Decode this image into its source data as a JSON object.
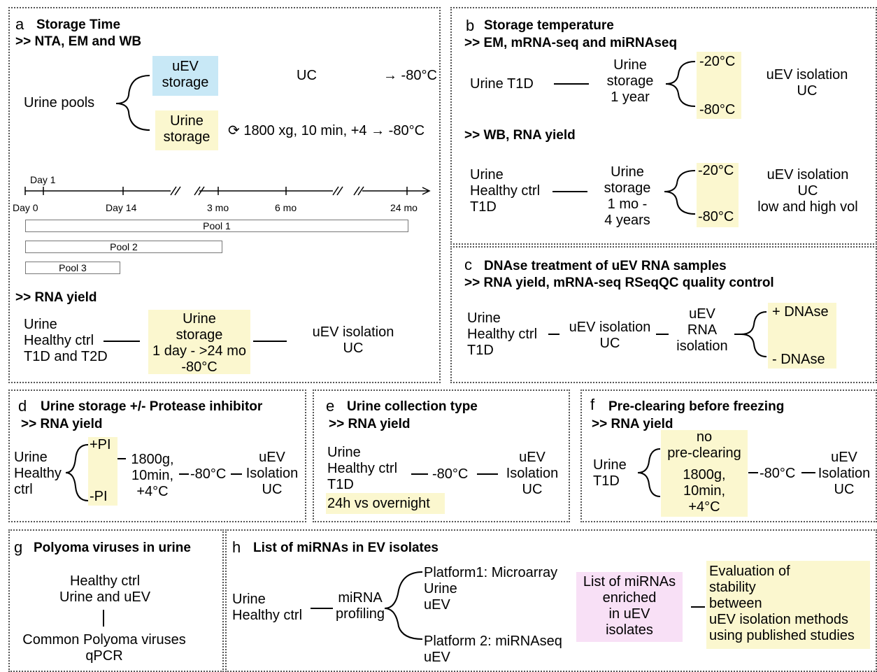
{
  "a": {
    "letter": "a",
    "title": "Storage Time",
    "sub": ">> NTA, EM and WB",
    "source": "Urine pools",
    "uev_storage": "uEV\nstorage",
    "urine_storage": "Urine\nstorage",
    "uc": "UC",
    "to80a": "→ -80°C",
    "clear": "⟳ 1800 xg, 10 min, +4 → -80°C",
    "timeline": {
      "day1": "Day 1",
      "day0": "Day 0",
      "day14": "Day 14",
      "mo3": "3 mo",
      "mo6": "6 mo",
      "mo24": "24 mo"
    },
    "pools": [
      "Pool 1",
      "Pool 2",
      "Pool 3"
    ],
    "rna_head": ">> RNA yield",
    "rna_source": "Urine\nHealthy ctrl\nT1D and T2D",
    "rna_storage": "Urine\nstorage\n1 day - >24 mo\n-80°C",
    "rna_iso": "uEV isolation\nUC"
  },
  "b": {
    "letter": "b",
    "title": "Storage temperature",
    "sub": ">> EM, mRNA-seq and miRNAseq",
    "source1": "Urine T1D",
    "storage1": "Urine\nstorage\n1 year",
    "temp_hi": "-20°C",
    "temp_lo": "-80°C",
    "iso1": "uEV isolation\nUC",
    "sub2": ">> WB, RNA yield",
    "source2": "Urine\nHealthy ctrl\nT1D",
    "storage2": "Urine\nstorage\n1 mo -\n4 years",
    "iso2": "uEV isolation\nUC\nlow and high vol"
  },
  "c": {
    "letter": "c",
    "title": "DNAse treatment of uEV RNA samples",
    "sub": ">> RNA yield, mRNA-seq RSeqQC quality control",
    "source": "Urine\nHealthy ctrl\nT1D",
    "iso": "uEV isolation\nUC",
    "rna": "uEV\nRNA\nisolation",
    "plus": "+ DNAse",
    "minus": "- DNAse"
  },
  "d": {
    "letter": "d",
    "title": "Urine storage +/- Protease inhibitor",
    "sub": ">> RNA yield",
    "source": "Urine\nHealthy\nctrl",
    "plus": "+PI",
    "minus": "-PI",
    "spin": "1800g,\n10min,\n+4°C",
    "temp": "-80°C",
    "iso": "uEV\nIsolation\nUC"
  },
  "e": {
    "letter": "e",
    "title": "Urine collection type",
    "sub": ">> RNA yield",
    "source": "Urine\nHealthy ctrl\nT1D",
    "collect": "24h vs overnight",
    "temp": "-80°C",
    "iso": "uEV\nIsolation\nUC"
  },
  "f": {
    "letter": "f",
    "title": "Pre-clearing before freezing",
    "sub": ">> RNA yield",
    "source": "Urine\nT1D",
    "no": "no\npre-clearing",
    "spin": "1800g,\n10min,\n+4°C",
    "temp": "-80°C",
    "iso": "uEV\nIsolation\nUC"
  },
  "g": {
    "letter": "g",
    "title": "Polyoma viruses in urine",
    "source": "Healthy ctrl\nUrine and uEV",
    "target": "Common Polyoma viruses\nqPCR"
  },
  "h": {
    "letter": "h",
    "title": "List of miRNAs in EV isolates",
    "source": "Urine\nHealthy ctrl",
    "profiling": "miRNA\nprofiling",
    "p1": "Platform1: Microarray\nUrine\nuEV",
    "p2": "Platform 2: miRNAseq\nuEV",
    "list": "List of miRNAs\nenriched\nin uEV\nisolates",
    "eval": "Evaluation of\nstability\nbetween\nuEV isolation methods\nusing published studies"
  },
  "colors": {
    "yellow": "#fbf7cf",
    "blue": "#c8e8f6",
    "pink": "#f8e0f6"
  }
}
